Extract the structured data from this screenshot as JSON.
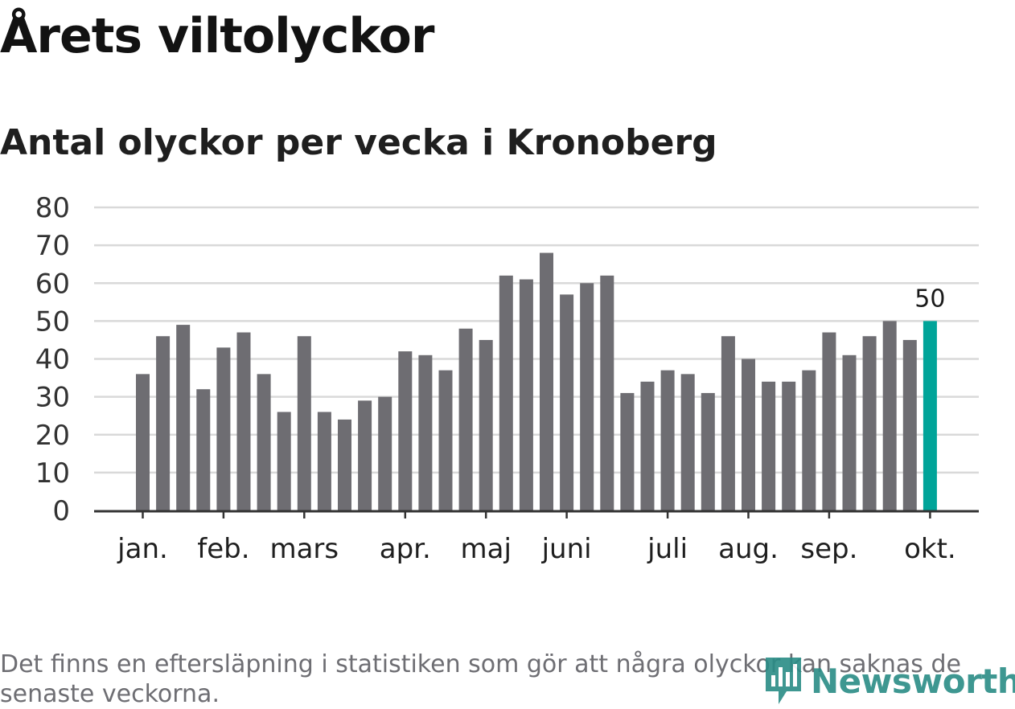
{
  "title": "Årets viltolyckor",
  "subtitle": "Antal olyckor per vecka i Kronoberg",
  "footnote": "Det finns en eftersläpning i statistiken som gör att några olyckor kan saknas de senaste veckorna.",
  "brand": {
    "name": "Newsworthy",
    "color": "#2a8c86",
    "icon": "bar-chart-speech-bubble-icon"
  },
  "colors": {
    "bar": "#6e6d72",
    "highlight": "#00a499",
    "grid": "#d9d9d9",
    "axis": "#333333"
  },
  "chart_data": {
    "type": "bar",
    "title": "Antal olyckor per vecka i Kronoberg",
    "xlabel": "",
    "ylabel": "",
    "ylim": [
      0,
      80
    ],
    "yticks": [
      0,
      10,
      20,
      30,
      40,
      50,
      60,
      70,
      80
    ],
    "grid": true,
    "weeks": [
      1,
      2,
      3,
      4,
      5,
      6,
      7,
      8,
      9,
      10,
      11,
      12,
      13,
      14,
      15,
      16,
      17,
      18,
      19,
      20,
      21,
      22,
      23,
      24,
      25,
      26,
      27,
      28,
      29,
      30,
      31,
      32,
      33,
      34,
      35,
      36,
      37,
      38,
      39,
      40
    ],
    "values": [
      36,
      46,
      49,
      32,
      43,
      47,
      36,
      26,
      46,
      26,
      24,
      29,
      30,
      42,
      41,
      37,
      48,
      45,
      62,
      61,
      68,
      57,
      60,
      62,
      31,
      34,
      37,
      36,
      31,
      46,
      40,
      34,
      34,
      37,
      47,
      41,
      46,
      50,
      45,
      50
    ],
    "highlight_index": 39,
    "highlight_label": "50",
    "month_ticks": [
      {
        "label": "jan.",
        "pos": 0.0
      },
      {
        "label": "feb.",
        "pos": 4.0
      },
      {
        "label": "mars",
        "pos": 8.0
      },
      {
        "label": "apr.",
        "pos": 13.0
      },
      {
        "label": "maj",
        "pos": 17.0
      },
      {
        "label": "juni",
        "pos": 21.0
      },
      {
        "label": "juli",
        "pos": 26.0
      },
      {
        "label": "aug.",
        "pos": 30.0
      },
      {
        "label": "sep.",
        "pos": 34.0
      },
      {
        "label": "okt.",
        "pos": 39.0
      }
    ]
  }
}
